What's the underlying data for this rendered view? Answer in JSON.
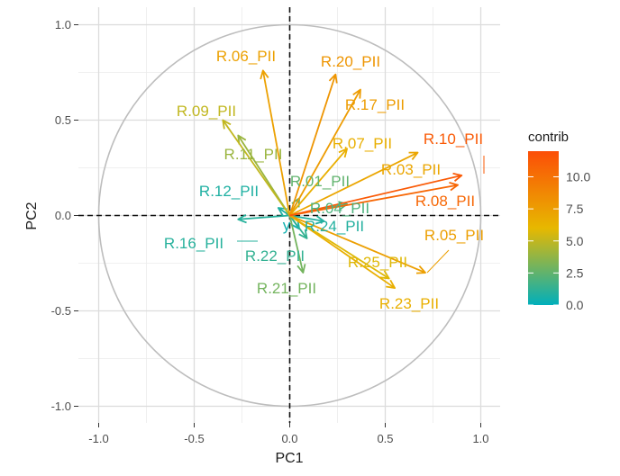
{
  "chart_data": {
    "type": "scatter",
    "subtype": "pca-variable-correlation-circle",
    "xlabel": "PC1",
    "ylabel": "PC2",
    "xlim": [
      -1.0,
      1.0
    ],
    "ylim": [
      -1.0,
      1.0
    ],
    "x_ticks": [
      -1.0,
      -0.5,
      0.0,
      0.5,
      1.0
    ],
    "y_ticks": [
      -1.0,
      -0.5,
      0.0,
      0.5,
      1.0
    ],
    "x_tick_labels": [
      "-1.0",
      "-0.5",
      "0.0",
      "0.5",
      "1.0"
    ],
    "y_tick_labels": [
      "-1.0",
      "-0.5",
      "0.0",
      "0.5",
      "1.0"
    ],
    "grid": true,
    "unit_circle": true,
    "zero_lines": "dashed",
    "legend": {
      "title": "contrib",
      "placement": "right",
      "ticks": [
        "0.0",
        "2.5",
        "5.0",
        "7.5",
        "10.0"
      ],
      "tick_values": [
        0,
        2.5,
        5,
        7.5,
        10
      ],
      "range": [
        0,
        12
      ],
      "colors": [
        "#00AFBB",
        "#E7B800",
        "#FC4E07"
      ]
    },
    "variables": [
      {
        "label": "R.06_PII",
        "x": -0.14,
        "y": 0.76,
        "contrib": 7.3
      },
      {
        "label": "R.20_PII",
        "x": 0.24,
        "y": 0.74,
        "contrib": 8.0
      },
      {
        "label": "R.17_PII",
        "x": 0.37,
        "y": 0.66,
        "contrib": 7.6
      },
      {
        "label": "R.09_PII",
        "x": -0.35,
        "y": 0.5,
        "contrib": 5.0
      },
      {
        "label": "R.11_PII",
        "x": -0.27,
        "y": 0.42,
        "contrib": 4.0
      },
      {
        "label": "R.07_PII",
        "x": 0.3,
        "y": 0.35,
        "contrib": 6.5
      },
      {
        "label": "R.10_PII",
        "x": 0.9,
        "y": 0.21,
        "contrib": 11.3
      },
      {
        "label": "R.03_PII",
        "x": 0.67,
        "y": 0.33,
        "contrib": 7.0
      },
      {
        "label": "R.12_PII",
        "x": -0.06,
        "y": 0.04,
        "contrib": 0.8
      },
      {
        "label": "R.01_PII",
        "x": 0.05,
        "y": 0.09,
        "contrib": 2.5
      },
      {
        "label": "R.08_PII",
        "x": 0.88,
        "y": 0.16,
        "contrib": 10.6
      },
      {
        "label": "R.04_PII",
        "x": 0.3,
        "y": 0.06,
        "contrib": 2.0
      },
      {
        "label": "R.24_PII",
        "x": 0.18,
        "y": -0.03,
        "contrib": 0.9
      },
      {
        "label": "y",
        "x": 0.05,
        "y": -0.07,
        "contrib": 0.4
      },
      {
        "label": "R.05_PII",
        "x": 0.71,
        "y": -0.3,
        "contrib": 7.4
      },
      {
        "label": "R.16_PII",
        "x": -0.27,
        "y": -0.02,
        "contrib": 1.0
      },
      {
        "label": "R.22_PII",
        "x": 0.09,
        "y": -0.12,
        "contrib": 1.3
      },
      {
        "label": "R.25_PII",
        "x": 0.52,
        "y": -0.33,
        "contrib": 5.8
      },
      {
        "label": "R.21_PII",
        "x": 0.07,
        "y": -0.3,
        "contrib": 3.0
      },
      {
        "label": "R.23_PII",
        "x": 0.55,
        "y": -0.38,
        "contrib": 6.5
      }
    ]
  }
}
